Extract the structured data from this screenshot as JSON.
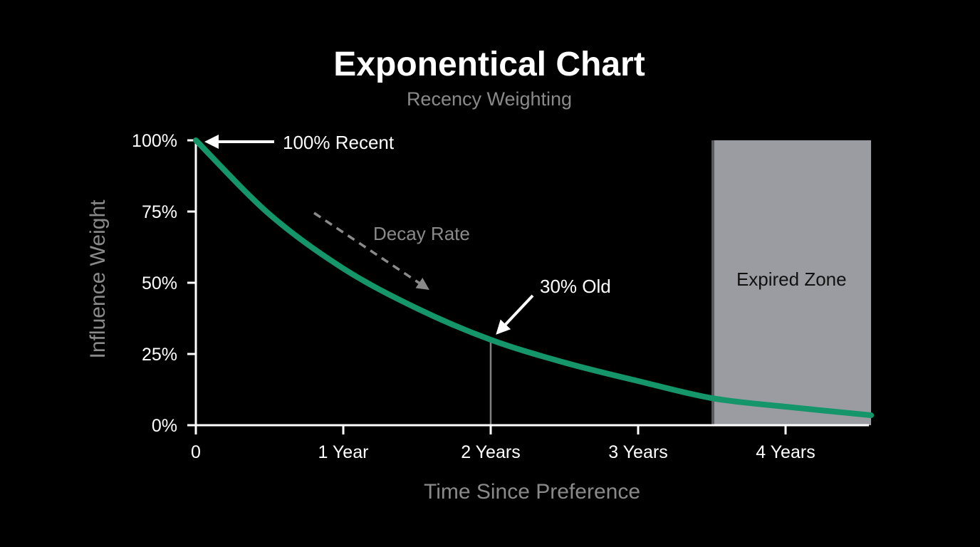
{
  "chart_data": {
    "type": "line",
    "title": "Exponentical Chart",
    "subtitle": "Recency Weighting",
    "xlabel": "Time Since Preference",
    "ylabel": "Influence Weight",
    "xlim": [
      0,
      4.58
    ],
    "ylim": [
      0,
      100
    ],
    "x_ticks": [
      0,
      1,
      2,
      3,
      4
    ],
    "x_tick_labels": [
      "0",
      "1 Year",
      "2 Years",
      "3 Years",
      "4 Years"
    ],
    "y_ticks": [
      0,
      25,
      50,
      75,
      100
    ],
    "y_tick_labels": [
      "0%",
      "25%",
      "50%",
      "75%",
      "100%"
    ],
    "grid": false,
    "series": [
      {
        "x": [
          0,
          0.5,
          1,
          1.5,
          2,
          2.5,
          3,
          3.5,
          4,
          4.58
        ],
        "values": [
          100,
          74,
          55,
          41,
          30,
          22,
          15.5,
          9.5,
          6.5,
          3.5
        ],
        "color": "#14966a"
      }
    ],
    "expired_zone": {
      "label": "Expired Zone",
      "x_start": 3.5,
      "x_end": 4.58,
      "fill": "#9b9ca2",
      "edge": "#5a5b60"
    },
    "annotations": [
      {
        "text": "100% Recent",
        "x": 0,
        "y": 100
      },
      {
        "text": "30% Old",
        "x": 2,
        "y": 30
      },
      {
        "text": "Decay Rate"
      }
    ],
    "colors": {
      "background": "#000000",
      "curve": "#14966a",
      "axis": "#ffffff",
      "muted_text": "#8a8a8a",
      "dashed_arrow": "#8a8a8a",
      "marker_line": "#808080"
    }
  }
}
